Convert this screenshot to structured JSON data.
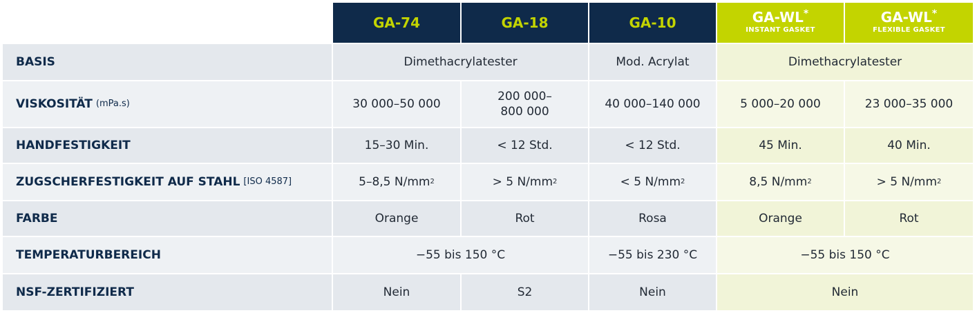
{
  "header": {
    "col1": "GA-74",
    "col2": "GA-18",
    "col3": "GA-10",
    "col4": {
      "name": "GA-WL",
      "mark": "*",
      "sub": "INSTANT GASKET"
    },
    "col5": {
      "name": "GA-WL",
      "mark": "*",
      "sub": "FLEXIBLE GASKET"
    }
  },
  "rows": {
    "basis": {
      "label": "BASIS",
      "v_ga74_ga18": "Dimethacrylatester",
      "v_ga10": "Mod. Acrylat",
      "v_gawl": "Dimethacrylatester"
    },
    "viskositaet": {
      "label": "VISKOSITÄT",
      "unit": "(mPa.s)",
      "v1": "30 000–50 000",
      "v2": "200 000–\n800 000",
      "v3": "40 000–140 000",
      "v4": "5 000–20 000",
      "v5": "23 000–35 000"
    },
    "handfestigkeit": {
      "label": "HANDFESTIGKEIT",
      "v1": "15–30 Min.",
      "v2": "< 12 Std.",
      "v3": "< 12 Std.",
      "v4": "45 Min.",
      "v5": "40 Min."
    },
    "zugscher": {
      "label": "ZUGSCHERFESTIGKEIT AUF STAHL",
      "unit": "[ISO 4587]",
      "v1": "5–8,5 N/mm",
      "v2": "> 5 N/mm",
      "v3": "< 5 N/mm",
      "v4": "8,5 N/mm",
      "v5": "> 5 N/mm",
      "exp": "2"
    },
    "farbe": {
      "label": "FARBE",
      "v1": "Orange",
      "v2": "Rot",
      "v3": "Rosa",
      "v4": "Orange",
      "v5": "Rot"
    },
    "temperatur": {
      "label": "TEMPERATURBEREICH",
      "v_ga74_ga18": "−55 bis 150 °C",
      "v_ga10": "−55 bis 230 °C",
      "v_gawl": "−55 bis 150 °C"
    },
    "nsf": {
      "label": "NSF-ZERTIFIZIERT",
      "v1": "Nein",
      "v2": "S2",
      "v3": "Nein",
      "v_gawl": "Nein"
    }
  }
}
